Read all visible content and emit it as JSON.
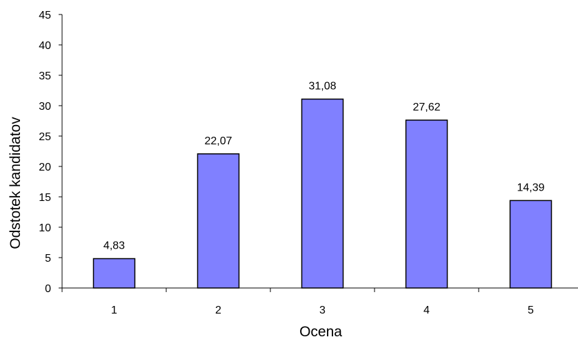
{
  "chart_data": {
    "type": "bar",
    "categories": [
      "1",
      "2",
      "3",
      "4",
      "5"
    ],
    "values": [
      4.83,
      22.07,
      31.08,
      27.62,
      14.39
    ],
    "value_labels": [
      "4,83",
      "22,07",
      "31,08",
      "27,62",
      "14,39"
    ],
    "xlabel": "Ocena",
    "ylabel": "Odstotek kandidatov",
    "ylim": [
      0,
      45
    ],
    "yticks": [
      0,
      5,
      10,
      15,
      20,
      25,
      30,
      35,
      40,
      45
    ],
    "grid": false,
    "bar_color": "#8080ff",
    "bar_edge_color": "#000000"
  }
}
